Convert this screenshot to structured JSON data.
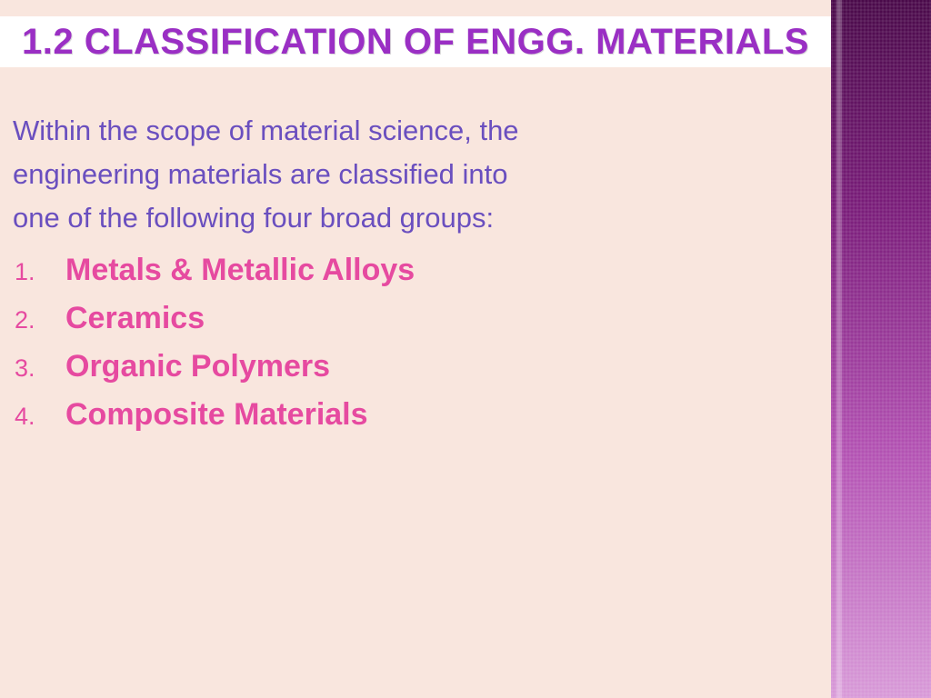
{
  "colors": {
    "slide_bg": "#f9e6de",
    "title_bg": "#ffffff",
    "title_text": "#9a2fc4",
    "intro_text": "#6a4fbf",
    "list_text": "#e64aa0",
    "band_top": "#4a0a4a",
    "band_bottom": "#d89ad8"
  },
  "typography": {
    "title_fontsize_pt": 30,
    "intro_fontsize_pt": 23,
    "list_num_fontsize_pt": 20,
    "list_label_fontsize_pt": 26,
    "title_weight": 700,
    "list_label_weight": 700
  },
  "title": "1.2 CLASSIFICATION OF ENGG. MATERIALS",
  "intro": {
    "line1": "Within the scope of material science, the",
    "line2": "engineering materials are classified into",
    "line3": "one of the following four broad groups:"
  },
  "items": [
    {
      "num": "1.",
      "label": "Metals & Metallic Alloys"
    },
    {
      "num": "2.",
      "label": "Ceramics"
    },
    {
      "num": "3.",
      "label": "Organic Polymers"
    },
    {
      "num": "4.",
      "label": "Composite Materials"
    }
  ]
}
